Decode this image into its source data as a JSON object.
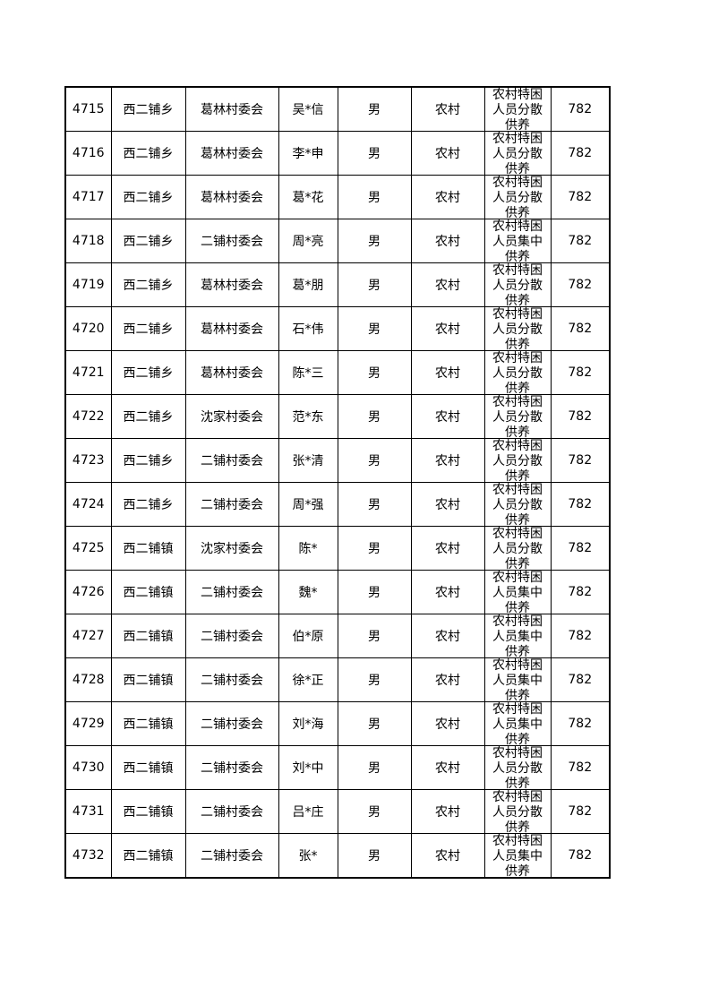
{
  "table": {
    "rows": [
      [
        "4715",
        "西二铺乡",
        "葛林村委会",
        "吴*信",
        "男",
        "农村",
        "农村特困人员分散供养",
        "782"
      ],
      [
        "4716",
        "西二铺乡",
        "葛林村委会",
        "李*申",
        "男",
        "农村",
        "农村特困人员分散供养",
        "782"
      ],
      [
        "4717",
        "西二铺乡",
        "葛林村委会",
        "葛*花",
        "男",
        "农村",
        "农村特困人员分散供养",
        "782"
      ],
      [
        "4718",
        "西二铺乡",
        "二铺村委会",
        "周*亮",
        "男",
        "农村",
        "农村特困人员集中供养",
        "782"
      ],
      [
        "4719",
        "西二铺乡",
        "葛林村委会",
        "葛*朋",
        "男",
        "农村",
        "农村特困人员分散供养",
        "782"
      ],
      [
        "4720",
        "西二铺乡",
        "葛林村委会",
        "石*伟",
        "男",
        "农村",
        "农村特困人员分散供养",
        "782"
      ],
      [
        "4721",
        "西二铺乡",
        "葛林村委会",
        "陈*三",
        "男",
        "农村",
        "农村特困人员分散供养",
        "782"
      ],
      [
        "4722",
        "西二铺乡",
        "沈家村委会",
        "范*东",
        "男",
        "农村",
        "农村特困人员分散供养",
        "782"
      ],
      [
        "4723",
        "西二铺乡",
        "二铺村委会",
        "张*清",
        "男",
        "农村",
        "农村特困人员分散供养",
        "782"
      ],
      [
        "4724",
        "西二铺乡",
        "二铺村委会",
        "周*强",
        "男",
        "农村",
        "农村特困人员分散供养",
        "782"
      ],
      [
        "4725",
        "西二铺镇",
        "沈家村委会",
        "陈*",
        "男",
        "农村",
        "农村特困人员分散供养",
        "782"
      ],
      [
        "4726",
        "西二铺镇",
        "二铺村委会",
        "魏*",
        "男",
        "农村",
        "农村特困人员集中供养",
        "782"
      ],
      [
        "4727",
        "西二铺镇",
        "二铺村委会",
        "伯*原",
        "男",
        "农村",
        "农村特困人员集中供养",
        "782"
      ],
      [
        "4728",
        "西二铺镇",
        "二铺村委会",
        "徐*正",
        "男",
        "农村",
        "农村特困人员集中供养",
        "782"
      ],
      [
        "4729",
        "西二铺镇",
        "二铺村委会",
        "刘*海",
        "男",
        "农村",
        "农村特困人员集中供养",
        "782"
      ],
      [
        "4730",
        "西二铺镇",
        "二铺村委会",
        "刘*中",
        "男",
        "农村",
        "农村特困人员分散供养",
        "782"
      ],
      [
        "4731",
        "西二铺镇",
        "二铺村委会",
        "吕*庄",
        "男",
        "农村",
        "农村特困人员分散供养",
        "782"
      ],
      [
        "4732",
        "西二铺镇",
        "二铺村委会",
        "张*",
        "男",
        "农村",
        "农村特困人员集中供养",
        "782"
      ]
    ]
  }
}
